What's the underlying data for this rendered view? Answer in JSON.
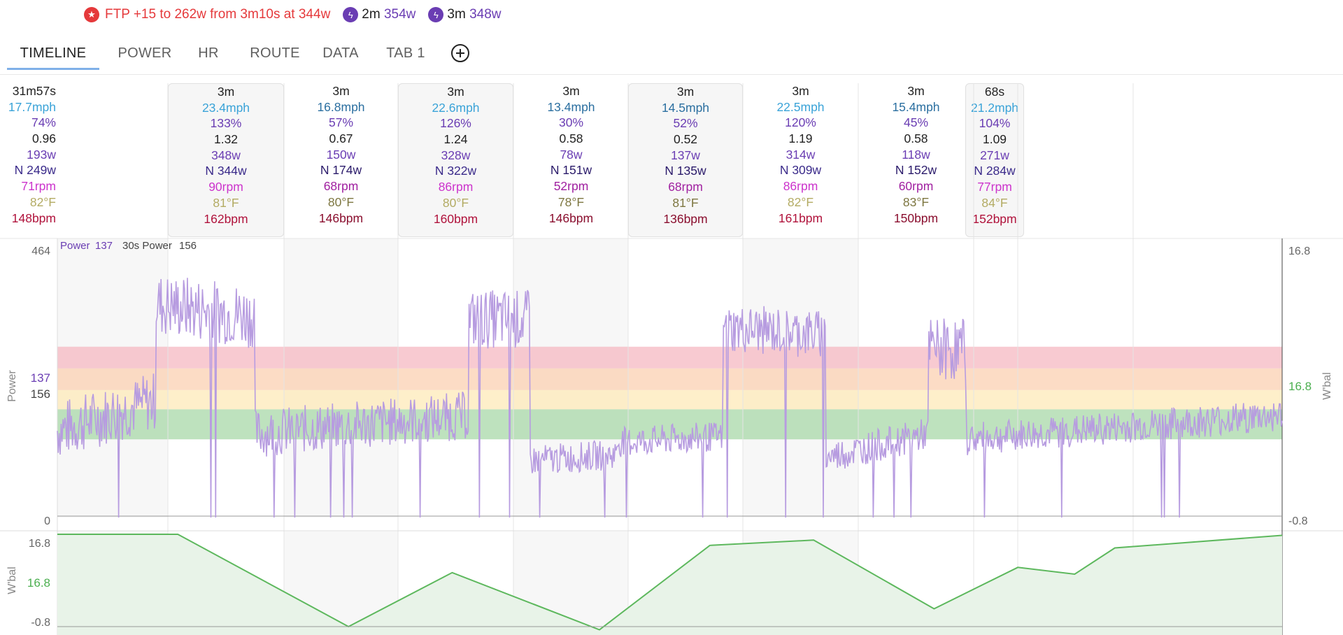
{
  "banner": {
    "ftp_text": "FTP +15 to 262w from 3m10s at 344w",
    "badges": [
      {
        "dur": "2m",
        "watts": "354w"
      },
      {
        "dur": "3m",
        "watts": "348w"
      }
    ],
    "colors": {
      "ftp": "#e5393b",
      "power": "#6a3db3"
    }
  },
  "tabs": [
    {
      "label": "TIMELINE",
      "active": true
    },
    {
      "label": "POWER"
    },
    {
      "label": "HR"
    },
    {
      "label": "ROUTE"
    },
    {
      "label": "DATA"
    },
    {
      "label": "TAB 1"
    }
  ],
  "intervals": [
    {
      "dur": "31m57s",
      "speed": "17.7mph",
      "pct": "74%",
      "if": "0.96",
      "avg": "193w",
      "np": "N 249w",
      "cad": "71rpm",
      "temp": "82°F",
      "hr": "148bpm"
    },
    {
      "dur": "3m",
      "speed": "23.4mph",
      "pct": "133%",
      "if": "1.32",
      "avg": "348w",
      "np": "N 344w",
      "cad": "90rpm",
      "temp": "81°F",
      "hr": "162bpm"
    },
    {
      "dur": "3m",
      "speed": "16.8mph",
      "pct": "57%",
      "if": "0.67",
      "avg": "150w",
      "np": "N 174w",
      "cad": "68rpm",
      "temp": "80°F",
      "hr": "146bpm"
    },
    {
      "dur": "3m",
      "speed": "22.6mph",
      "pct": "126%",
      "if": "1.24",
      "avg": "328w",
      "np": "N 322w",
      "cad": "86rpm",
      "temp": "80°F",
      "hr": "160bpm"
    },
    {
      "dur": "3m",
      "speed": "13.4mph",
      "pct": "30%",
      "if": "0.58",
      "avg": "78w",
      "np": "N 151w",
      "cad": "52rpm",
      "temp": "78°F",
      "hr": "146bpm"
    },
    {
      "dur": "3m",
      "speed": "14.5mph",
      "pct": "52%",
      "if": "0.52",
      "avg": "137w",
      "np": "N 135w",
      "cad": "68rpm",
      "temp": "81°F",
      "hr": "136bpm"
    },
    {
      "dur": "3m",
      "speed": "22.5mph",
      "pct": "120%",
      "if": "1.19",
      "avg": "314w",
      "np": "N 309w",
      "cad": "86rpm",
      "temp": "82°F",
      "hr": "161bpm"
    },
    {
      "dur": "3m",
      "speed": "15.4mph",
      "pct": "45%",
      "if": "0.58",
      "avg": "118w",
      "np": "N 152w",
      "cad": "60rpm",
      "temp": "83°F",
      "hr": "150bpm"
    },
    {
      "dur": "68s",
      "speed": "21.2mph",
      "pct": "104%",
      "if": "1.09",
      "avg": "271w",
      "np": "N 284w",
      "cad": "77rpm",
      "temp": "84°F",
      "hr": "152bpm"
    }
  ],
  "stat_colors": {
    "dur": "#222222",
    "speed": "#3aa3d8",
    "pct": "#6a3db3",
    "if": "#222222",
    "avg": "#6a3db3",
    "np": "#3a2a8a",
    "cad": "#cc33cc",
    "temp": "#b3ab63",
    "hr": "#b0123b"
  },
  "hard_interval_colors": {
    "speed": "#3aa3d8",
    "np": "#3a2a8a",
    "cad": "#cc33cc",
    "temp": "#b3ab63",
    "hr": "#b0123b"
  },
  "easy_interval_colors": {
    "speed": "#2b6fa0",
    "np": "#2a1a6a",
    "cad": "#a020a0",
    "temp": "#7d7640",
    "hr": "#8a0e2e"
  },
  "power_chart": {
    "legend": {
      "power_label": "Power",
      "power_value": "137",
      "avg30_label": "30s Power",
      "avg30_value": "156"
    },
    "y_left": {
      "top": "464",
      "bottom": "0",
      "marker1": "137",
      "marker2": "156",
      "axis_label": "Power"
    },
    "y_right": {
      "top": "16.8",
      "mid": "16.8",
      "bottom": "-0.8",
      "axis_label": "W'bal"
    },
    "ymax": 464,
    "zones": [
      {
        "from": 130,
        "to": 180,
        "color": "#a8d8a8"
      },
      {
        "from": 180,
        "to": 212,
        "color": "#fde9b8"
      },
      {
        "from": 212,
        "to": 248,
        "color": "#fbd0b2"
      },
      {
        "from": 248,
        "to": 284,
        "color": "#f5b8c2"
      }
    ],
    "line_color": "#b79ce0",
    "segments": [
      {
        "from": 0,
        "to": 0.24,
        "base": 170,
        "noise": 55,
        "trend": 50
      },
      {
        "from": 0.24,
        "to": 0.48,
        "base": 345,
        "noise": 60,
        "trend": -20
      },
      {
        "from": 0.48,
        "to": 1.0,
        "base": 155,
        "noise": 45,
        "trend": 30
      },
      {
        "from": 1.0,
        "to": 1.15,
        "base": 330,
        "noise": 55,
        "trend": 0
      },
      {
        "from": 1.15,
        "to": 1.36,
        "base": 100,
        "noise": 28,
        "trend": 10
      },
      {
        "from": 1.36,
        "to": 1.62,
        "base": 130,
        "noise": 28,
        "trend": 10
      },
      {
        "from": 1.62,
        "to": 1.87,
        "base": 310,
        "noise": 45,
        "trend": -10
      },
      {
        "from": 1.87,
        "to": 2.12,
        "base": 120,
        "noise": 30,
        "trend": 40
      },
      {
        "from": 2.12,
        "to": 2.21,
        "base": 280,
        "noise": 60,
        "trend": 0
      },
      {
        "from": 2.21,
        "to": 2.98,
        "base": 150,
        "noise": 30,
        "trend": 40
      }
    ]
  },
  "wbal_chart": {
    "y_left": {
      "top": "16.8",
      "mid": "16.8",
      "bottom": "-0.8",
      "axis_label": "W'bal"
    },
    "line_color": "#5db85d",
    "fill_color": "#e8f3e8",
    "points": [
      [
        0,
        16.8
      ],
      [
        0.36,
        16.8
      ],
      [
        0.87,
        -0.8
      ],
      [
        1.18,
        9.5
      ],
      [
        1.62,
        -1.4
      ],
      [
        1.95,
        14.7
      ],
      [
        2.26,
        15.7
      ],
      [
        2.62,
        2.6
      ],
      [
        2.87,
        10.5
      ],
      [
        3.04,
        9.2
      ],
      [
        3.16,
        14.2
      ],
      [
        3.66,
        16.6
      ]
    ]
  }
}
